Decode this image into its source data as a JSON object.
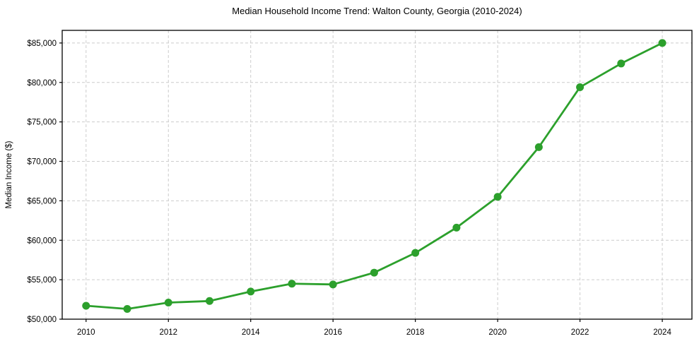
{
  "chart_data": {
    "type": "line",
    "title": "Median Household Income Trend: Walton County, Georgia (2010-2024)",
    "xlabel": "",
    "ylabel": "Median Income ($)",
    "x": [
      2010,
      2011,
      2012,
      2013,
      2014,
      2015,
      2016,
      2017,
      2018,
      2019,
      2020,
      2021,
      2022,
      2023,
      2024
    ],
    "values": [
      51700,
      51300,
      52100,
      52300,
      53500,
      54500,
      54400,
      55900,
      58400,
      61600,
      65500,
      71800,
      79400,
      82400,
      85000
    ],
    "xticks": [
      2010,
      2012,
      2014,
      2016,
      2018,
      2020,
      2022,
      2024
    ],
    "xtick_labels": [
      "2010",
      "2012",
      "2014",
      "2016",
      "2018",
      "2020",
      "2022",
      "2024"
    ],
    "yticks": [
      50000,
      55000,
      60000,
      65000,
      70000,
      75000,
      80000,
      85000
    ],
    "ytick_labels": [
      "$50,000",
      "$55,000",
      "$60,000",
      "$65,000",
      "$70,000",
      "$75,000",
      "$80,000",
      "$85,000"
    ],
    "xlim": [
      2009.42,
      2024.72
    ],
    "ylim": [
      50000,
      86600
    ],
    "grid": true,
    "grid_style": "dashed",
    "legend": false,
    "marker": "circle",
    "colors": {
      "line": "#2ca02c",
      "marker": "#2ca02c",
      "grid": "#cccccc",
      "axis": "#000000",
      "text": "#000000",
      "background": "#ffffff"
    }
  }
}
